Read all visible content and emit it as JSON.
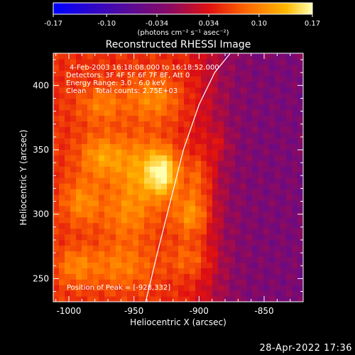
{
  "colorbar": {
    "ticks": [
      "-0.17",
      "-0.10",
      "-0.034",
      "0.034",
      "0.10",
      "0.17"
    ],
    "units": "(photons cm⁻² s⁻¹ asec⁻²)",
    "range": [
      -0.17,
      0.17
    ]
  },
  "plot": {
    "title": "Reconstructed RHESSI Image",
    "xlabel": "Heliocentric X (arcsec)",
    "ylabel": "Heliocentric Y (arcsec)",
    "info": [
      "4-Feb-2003 16:18:08.000 to 16:18:52.000",
      "Detectors: 3F 4F 5F 6F 7F 8F, Att 0",
      "Energy Range: 3.0 - 6.0 keV",
      "Clean    Total counts: 2.75E+03"
    ],
    "peak_label": "Position of Peak = [-928,332]"
  },
  "footer": {
    "timestamp": "28-Apr-2022 17:36"
  },
  "chart_data": {
    "type": "heatmap",
    "title": "Reconstructed RHESSI Image",
    "xlabel": "Heliocentric X (arcsec)",
    "ylabel": "Heliocentric Y (arcsec)",
    "xlim": [
      -1012,
      -820
    ],
    "ylim": [
      232,
      425
    ],
    "x_ticks": [
      -1000,
      -950,
      -900,
      -850
    ],
    "x_tick_labels": [
      "-1000",
      "-950",
      "-900",
      "-850"
    ],
    "y_ticks": [
      250,
      300,
      350,
      400
    ],
    "y_tick_labels": [
      "250",
      "300",
      "350",
      "400"
    ],
    "value_range": [
      -0.17,
      0.17
    ],
    "colormap": [
      "#0000ff",
      "#4b0aa5",
      "#8a0a62",
      "#e01010",
      "#ff6a00",
      "#ffb800",
      "#ffffb0"
    ],
    "peak": [
      -928,
      332
    ],
    "limb_curve": {
      "x": [
        -941,
        -932,
        -922,
        -912,
        -900,
        -888,
        -876
      ],
      "y": [
        232,
        270,
        310,
        350,
        385,
        410,
        425
      ]
    },
    "blobs": [
      {
        "x": -928,
        "y": 332,
        "sx": 8,
        "sy": 12,
        "amp": 0.13
      },
      {
        "x": -945,
        "y": 335,
        "sx": 14,
        "sy": 18,
        "amp": 0.07
      },
      {
        "x": -975,
        "y": 345,
        "sx": 12,
        "sy": 12,
        "amp": 0.07
      },
      {
        "x": -990,
        "y": 310,
        "sx": 10,
        "sy": 12,
        "amp": 0.06
      },
      {
        "x": -955,
        "y": 300,
        "sx": 14,
        "sy": 15,
        "amp": 0.05
      },
      {
        "x": -905,
        "y": 300,
        "sx": 10,
        "sy": 12,
        "amp": 0.08
      },
      {
        "x": -900,
        "y": 330,
        "sx": 8,
        "sy": 12,
        "amp": 0.05
      },
      {
        "x": -975,
        "y": 385,
        "sx": 12,
        "sy": 10,
        "amp": 0.05
      },
      {
        "x": -935,
        "y": 390,
        "sx": 14,
        "sy": 12,
        "amp": 0.06
      },
      {
        "x": -960,
        "y": 260,
        "sx": 18,
        "sy": 12,
        "amp": 0.05
      },
      {
        "x": -995,
        "y": 260,
        "sx": 10,
        "sy": 10,
        "amp": 0.05
      },
      {
        "x": -905,
        "y": 265,
        "sx": 12,
        "sy": 10,
        "amp": 0.045
      },
      {
        "x": -885,
        "y": 355,
        "sx": 6,
        "sy": 8,
        "amp": 0.03
      }
    ],
    "background": {
      "west": 0.02,
      "east": -0.07,
      "transition_x": -890
    }
  }
}
